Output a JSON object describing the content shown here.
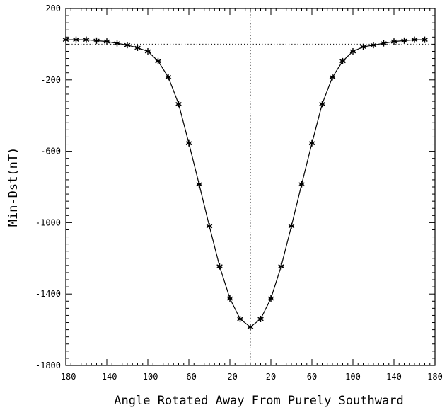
{
  "chart_data": {
    "type": "line",
    "title": "",
    "xlabel": "Angle Rotated Away From Purely Southward",
    "ylabel": "Min-Dst(nT)",
    "xlim": [
      -180,
      180
    ],
    "ylim": [
      -1800,
      200
    ],
    "xticks": [
      "-180",
      "-140",
      "-100",
      "-60",
      "-20",
      "20",
      "60",
      "100",
      "140",
      "180"
    ],
    "yticks": [
      "200",
      "-200",
      "-600",
      "-1000",
      "-1400",
      "-1800"
    ],
    "grid": false,
    "marker": "asterisk",
    "reference_lines": {
      "horizontal_y": 0,
      "vertical_x": 0
    },
    "series": [
      {
        "x": [
          -180,
          -170,
          -160,
          -150,
          -140,
          -130,
          -120,
          -110,
          -100,
          -90,
          -80,
          -70,
          -60,
          -50,
          -40,
          -30,
          -20,
          -10,
          0,
          10,
          20,
          30,
          40,
          50,
          60,
          70,
          80,
          90,
          100,
          110,
          120,
          130,
          140,
          150,
          160,
          170
        ],
        "values": [
          25,
          25,
          25,
          20,
          15,
          5,
          -5,
          -20,
          -40,
          -95,
          -185,
          -335,
          -555,
          -785,
          -1020,
          -1245,
          -1425,
          -1540,
          -1585,
          -1540,
          -1425,
          -1245,
          -1020,
          -785,
          -555,
          -335,
          -185,
          -95,
          -40,
          -15,
          -5,
          5,
          15,
          20,
          25,
          25
        ]
      }
    ]
  }
}
